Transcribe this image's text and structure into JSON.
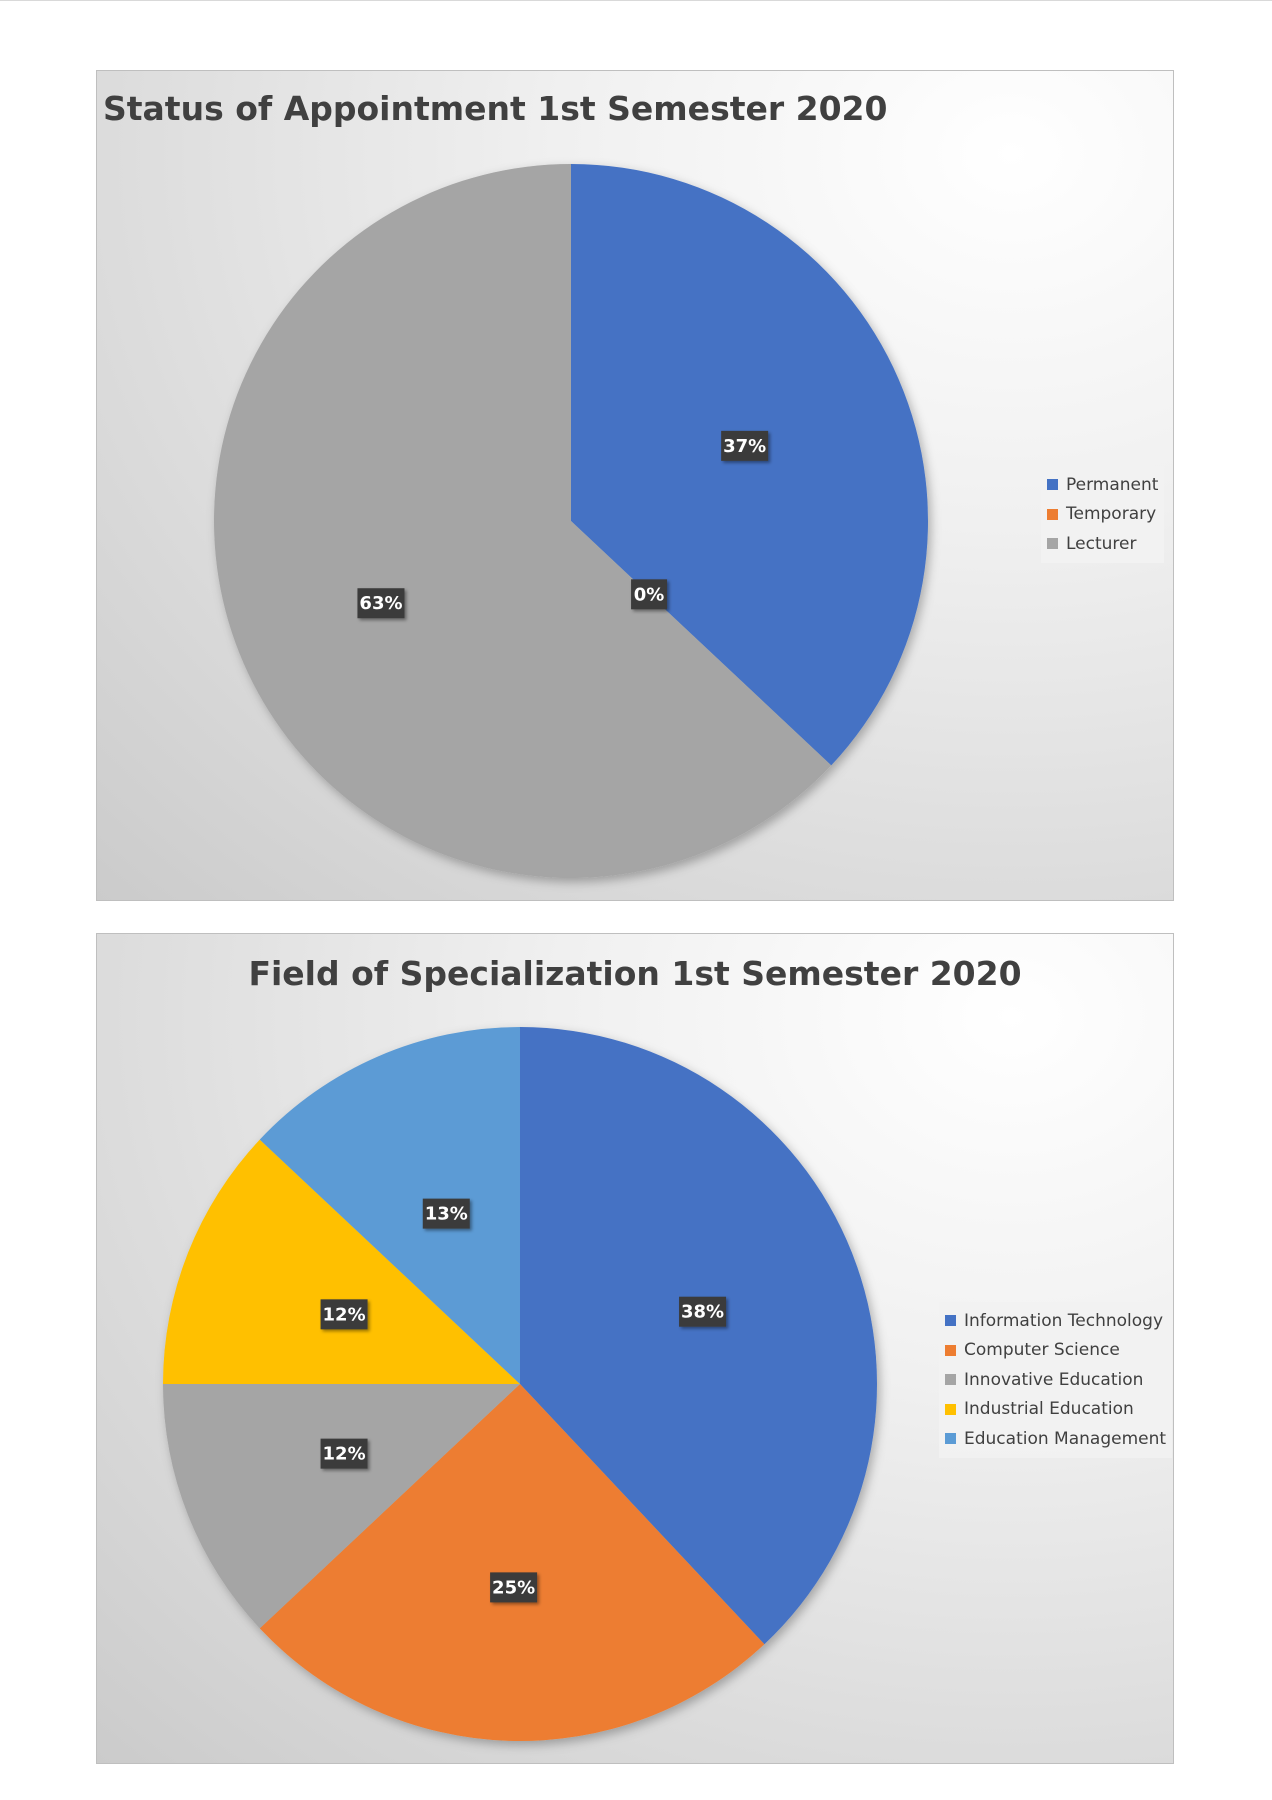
{
  "chart_data": [
    {
      "type": "pie",
      "title": "Status of Appointment 1st Semester 2020",
      "categories": [
        "Permanent",
        "Temporary",
        "Lecturer"
      ],
      "values": [
        37,
        0,
        63
      ],
      "data_labels": [
        "37%",
        "0%",
        "63%"
      ],
      "colors": [
        "#4472C4",
        "#ED7D31",
        "#A5A5A5"
      ],
      "legend": "right"
    },
    {
      "type": "pie",
      "title": "Field of Specialization 1st Semester 2020",
      "categories": [
        "Information Technology",
        "Computer Science",
        "Innovative Education",
        "Industrial Education",
        "Education Management"
      ],
      "values": [
        38,
        25,
        12,
        12,
        13
      ],
      "data_labels": [
        "38%",
        "25%",
        "12%",
        "12%",
        "13%"
      ],
      "colors": [
        "#4472C4",
        "#ED7D31",
        "#A5A5A5",
        "#FFC000",
        "#5B9BD5"
      ],
      "legend": "right"
    }
  ]
}
